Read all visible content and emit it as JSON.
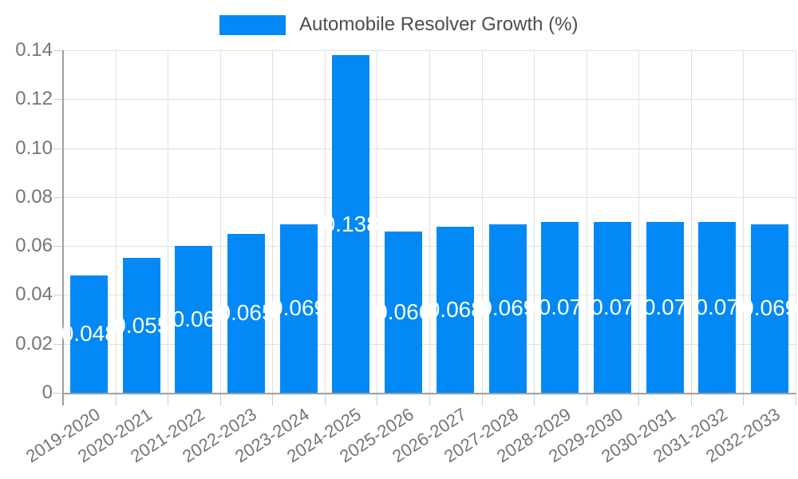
{
  "legend": {
    "label": "Automobile Resolver Growth (%)"
  },
  "colors": {
    "bar": "#0389f5",
    "grid": "#e0e0e0",
    "axis": "#9e9e9e",
    "tick": "#cccccc",
    "axis_label_text": "#757575",
    "legend_text": "#4d4d4d",
    "value_label_text": "#ffffff"
  },
  "chart_data": {
    "type": "bar",
    "title": "",
    "series_name": "Automobile Resolver Growth (%)",
    "categories": [
      "2019-2020",
      "2020-2021",
      "2021-2022",
      "2022-2023",
      "2023-2024",
      "2024-2025",
      "2025-2026",
      "2026-2027",
      "2027-2028",
      "2028-2029",
      "2029-2030",
      "2030-2031",
      "2031-2032",
      "2032-2033"
    ],
    "values": [
      0.048,
      0.055,
      0.06,
      0.065,
      0.069,
      0.138,
      0.066,
      0.068,
      0.069,
      0.07,
      0.07,
      0.07,
      0.07,
      0.069
    ],
    "value_labels": [
      "0.048",
      "0.055",
      "0.06",
      "0.065",
      "0.069",
      "0.138",
      "0.066",
      "0.068",
      "0.069",
      "0.07",
      "0.07",
      "0.07",
      "0.07",
      "0.069"
    ],
    "xlabel": "",
    "ylabel": "",
    "ylim": [
      0,
      0.14
    ],
    "yticks": [
      0,
      0.02,
      0.04,
      0.06,
      0.08,
      0.1,
      0.12,
      0.14
    ],
    "ytick_labels": [
      "0",
      "0.02",
      "0.04",
      "0.06",
      "0.08",
      "0.10",
      "0.12",
      "0.14"
    ],
    "grid": true,
    "legend_position": "top",
    "value_labels_position": "center"
  }
}
